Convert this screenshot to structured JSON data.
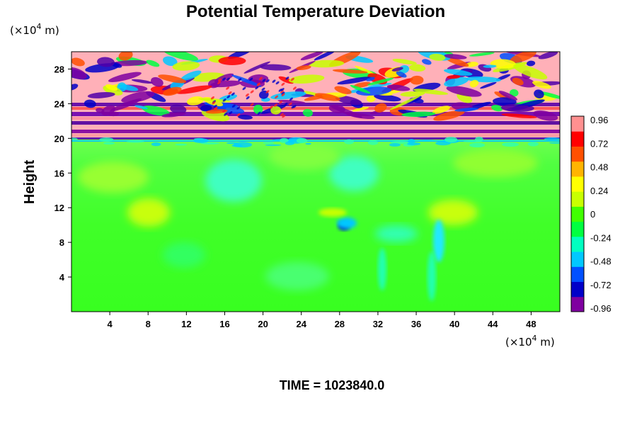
{
  "chart_data": {
    "type": "heatmap",
    "title": "Potential Temperature Deviation",
    "ylabel": "Height",
    "y_unit_prefix": "(×10",
    "y_unit_exp": "4",
    "y_unit_suffix": " m)",
    "x_unit_prefix": "(×10",
    "x_unit_exp": "4",
    "x_unit_suffix": " m)",
    "xlim": [
      0,
      51
    ],
    "ylim": [
      0,
      30
    ],
    "x_ticks": [
      4,
      8,
      12,
      16,
      20,
      24,
      28,
      32,
      36,
      40,
      44,
      48
    ],
    "x_tick_labels": [
      "4",
      "8",
      "12",
      "16",
      "20",
      "24",
      "28",
      "32",
      "36",
      "40",
      "44",
      "48"
    ],
    "y_ticks": [
      4,
      8,
      12,
      16,
      20,
      24,
      28
    ],
    "y_tick_labels": [
      "4",
      "8",
      "12",
      "16",
      "20",
      "24",
      "28"
    ],
    "colorbar": {
      "range": [
        -0.96,
        0.96
      ],
      "ticks": [
        0.96,
        0.72,
        0.48,
        0.24,
        0,
        -0.24,
        -0.48,
        -0.72,
        -0.96
      ],
      "tick_labels": [
        "0.96",
        "0.72",
        "0.48",
        "0.24",
        "0",
        "-0.24",
        "-0.48",
        "-0.72",
        "-0.96"
      ],
      "colors": [
        "#7f00a0",
        "#0000c8",
        "#0050ff",
        "#00c8ff",
        "#00ffc0",
        "#00ff40",
        "#40ff00",
        "#c8ff00",
        "#ffff00",
        "#ffb400",
        "#ff5000",
        "#ff0000",
        "#ff9090"
      ]
    },
    "time_label": "TIME = 1023840.0"
  }
}
